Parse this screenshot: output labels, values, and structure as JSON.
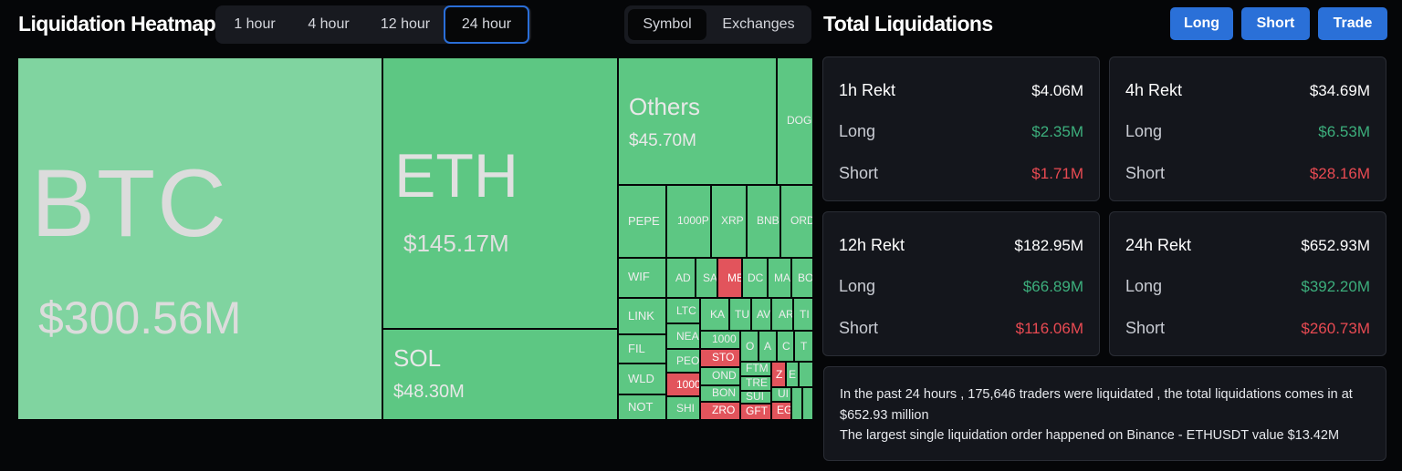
{
  "heatmap": {
    "title": "Liquidation Heatmap",
    "timeframes": [
      "1 hour",
      "4 hour",
      "12 hour",
      "24 hour"
    ],
    "selected_timeframe": "24 hour",
    "views": [
      "Symbol",
      "Exchanges"
    ],
    "selected_view": "Symbol",
    "tiles": {
      "btc": {
        "symbol": "BTC",
        "value": "$300.56M"
      },
      "eth": {
        "symbol": "ETH",
        "value": "$145.17M"
      },
      "sol": {
        "symbol": "SOL",
        "value": "$48.30M"
      },
      "others": {
        "symbol": "Others",
        "value": "$45.70M"
      },
      "doge": "DOG",
      "pepe": "PEPE",
      "k1000p": "1000P",
      "xrp": "XRP",
      "bnb": "BNB",
      "ordi": "ORD",
      "wif": "WIF",
      "link": "LINK",
      "fil": "FIL",
      "wld": "WLD",
      "not": "NOT",
      "ad": "AD",
      "sa": "SA",
      "me": "ME",
      "dc": "DC",
      "ma": "MA",
      "bo": "BO",
      "ltc": "LTC",
      "ka": "KA",
      "tu": "TU",
      "av": "AV",
      "ar": "AR",
      "ti": "TI",
      "nea": "NEA",
      "k1000a": "1000",
      "o": "O",
      "a": "A",
      "c": "C",
      "t": "T",
      "sto": "STO",
      "peo": "PEO",
      "ftm": "FTM",
      "ond": "OND",
      "tre": "TRE",
      "z": "Z",
      "e": "E",
      "k1000b": "1000",
      "bon": "BON",
      "ui": "UI",
      "sui": "SUI",
      "shi": "SHI",
      "zro": "ZRO",
      "gft": "GFT",
      "eg": "EG"
    }
  },
  "total": {
    "title": "Total Liquidations",
    "buttons": {
      "long": "Long",
      "short": "Short",
      "trade": "Trade"
    },
    "long_label": "Long",
    "short_label": "Short",
    "cards": [
      {
        "label": "1h Rekt",
        "total": "$4.06M",
        "long": "$2.35M",
        "short": "$1.71M"
      },
      {
        "label": "4h Rekt",
        "total": "$34.69M",
        "long": "$6.53M",
        "short": "$28.16M"
      },
      {
        "label": "12h Rekt",
        "total": "$182.95M",
        "long": "$66.89M",
        "short": "$116.06M"
      },
      {
        "label": "24h Rekt",
        "total": "$652.93M",
        "long": "$392.20M",
        "short": "$260.73M"
      }
    ],
    "summary_line1": "In the past 24 hours , 175,646 traders were liquidated , the total liquidations comes in at $652.93 million",
    "summary_line2": "The largest single liquidation order happened on Binance - ETHUSDT value $13.42M"
  },
  "colors": {
    "long": "#5dc783",
    "short": "#e2545c",
    "accent": "#2a70d8",
    "background": "#050608"
  }
}
